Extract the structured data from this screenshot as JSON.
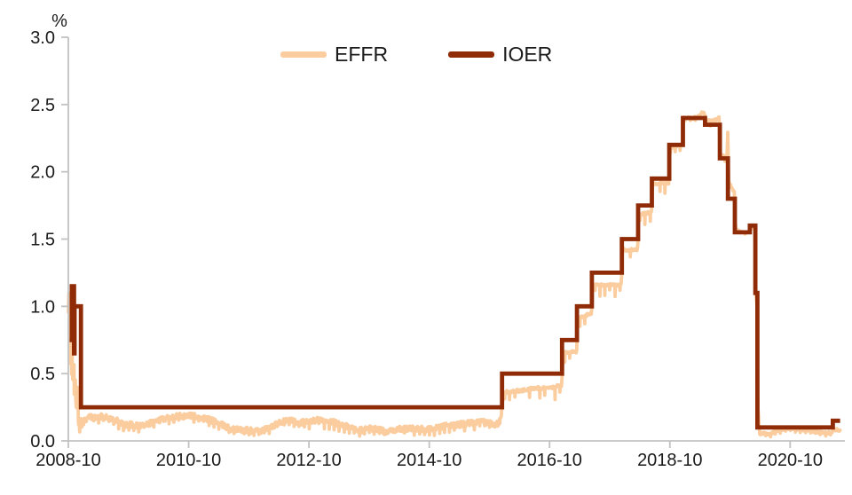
{
  "chart_data": {
    "type": "line",
    "title": "",
    "xlabel": "",
    "ylabel": "%",
    "background": "#FFFFFF",
    "text_color": "#1A1A1A",
    "axis_color": "#C2C2C2",
    "grid": "off",
    "legend_position": "top-center",
    "xlim": [
      2008.75,
      2021.66
    ],
    "ylim": [
      0,
      3.0
    ],
    "x_ticks": [
      {
        "label": "2008-10",
        "t": 2008.75
      },
      {
        "label": "2010-10",
        "t": 2010.75
      },
      {
        "label": "2012-10",
        "t": 2012.75
      },
      {
        "label": "2014-10",
        "t": 2014.75
      },
      {
        "label": "2016-10",
        "t": 2016.75
      },
      {
        "label": "2018-10",
        "t": 2018.75
      },
      {
        "label": "2020-10",
        "t": 2020.75
      }
    ],
    "y_ticks": [
      {
        "label": "0.0",
        "v": 0.0
      },
      {
        "label": "0.5",
        "v": 0.5
      },
      {
        "label": "1.0",
        "v": 1.0
      },
      {
        "label": "1.5",
        "v": 1.5
      },
      {
        "label": "2.0",
        "v": 2.0
      },
      {
        "label": "2.5",
        "v": 2.5
      },
      {
        "label": "3.0",
        "v": 3.0
      }
    ],
    "series": [
      {
        "name": "EFFR",
        "color": "#FACC9E",
        "line_width": 3.8,
        "style": "daily-noisy-line",
        "end": 2021.58,
        "anchors": [
          [
            2008.75,
            0.95
          ],
          [
            2008.753,
            1.45
          ],
          [
            2008.758,
            1.05
          ],
          [
            2008.763,
            1.28
          ],
          [
            2008.77,
            0.75
          ],
          [
            2008.778,
            1.05
          ],
          [
            2008.786,
            0.55
          ],
          [
            2008.795,
            0.9
          ],
          [
            2008.805,
            0.45
          ],
          [
            2008.815,
            0.72
          ],
          [
            2008.826,
            0.38
          ],
          [
            2008.838,
            0.62
          ],
          [
            2008.85,
            0.3
          ],
          [
            2008.865,
            0.5
          ],
          [
            2008.88,
            0.25
          ],
          [
            2008.9,
            0.4
          ],
          [
            2008.92,
            0.15
          ],
          [
            2008.945,
            0.1
          ],
          [
            2008.97,
            0.14
          ],
          [
            2009.0,
            0.15
          ],
          [
            2009.1,
            0.18
          ],
          [
            2009.2,
            0.17
          ],
          [
            2009.3,
            0.18
          ],
          [
            2009.4,
            0.17
          ],
          [
            2009.5,
            0.16
          ],
          [
            2009.6,
            0.14
          ],
          [
            2009.7,
            0.12
          ],
          [
            2009.8,
            0.12
          ],
          [
            2009.9,
            0.11
          ],
          [
            2010.0,
            0.12
          ],
          [
            2010.15,
            0.14
          ],
          [
            2010.3,
            0.16
          ],
          [
            2010.45,
            0.18
          ],
          [
            2010.6,
            0.19
          ],
          [
            2010.75,
            0.19
          ],
          [
            2010.9,
            0.18
          ],
          [
            2011.0,
            0.17
          ],
          [
            2011.15,
            0.15
          ],
          [
            2011.3,
            0.12
          ],
          [
            2011.45,
            0.09
          ],
          [
            2011.6,
            0.08
          ],
          [
            2011.75,
            0.08
          ],
          [
            2011.9,
            0.07
          ],
          [
            2012.0,
            0.08
          ],
          [
            2012.15,
            0.11
          ],
          [
            2012.3,
            0.14
          ],
          [
            2012.45,
            0.15
          ],
          [
            2012.6,
            0.14
          ],
          [
            2012.75,
            0.14
          ],
          [
            2012.9,
            0.16
          ],
          [
            2013.0,
            0.14
          ],
          [
            2013.15,
            0.14
          ],
          [
            2013.3,
            0.12
          ],
          [
            2013.45,
            0.1
          ],
          [
            2013.6,
            0.08
          ],
          [
            2013.75,
            0.09
          ],
          [
            2013.9,
            0.09
          ],
          [
            2014.0,
            0.07
          ],
          [
            2014.15,
            0.08
          ],
          [
            2014.3,
            0.09
          ],
          [
            2014.45,
            0.09
          ],
          [
            2014.6,
            0.09
          ],
          [
            2014.75,
            0.09
          ],
          [
            2014.9,
            0.1
          ],
          [
            2015.0,
            0.11
          ],
          [
            2015.2,
            0.12
          ],
          [
            2015.4,
            0.13
          ],
          [
            2015.6,
            0.14
          ],
          [
            2015.8,
            0.13
          ],
          [
            2015.9,
            0.13
          ],
          [
            2015.95,
            0.2
          ],
          [
            2015.965,
            0.36
          ],
          [
            2016.2,
            0.37
          ],
          [
            2016.5,
            0.39
          ],
          [
            2016.8,
            0.4
          ],
          [
            2016.95,
            0.41
          ],
          [
            2016.965,
            0.55
          ],
          [
            2017.0,
            0.66
          ],
          [
            2017.2,
            0.66
          ],
          [
            2017.215,
            0.91
          ],
          [
            2017.45,
            0.95
          ],
          [
            2017.465,
            1.16
          ],
          [
            2017.7,
            1.16
          ],
          [
            2017.945,
            1.16
          ],
          [
            2017.96,
            1.42
          ],
          [
            2018.215,
            1.42
          ],
          [
            2018.23,
            1.68
          ],
          [
            2018.445,
            1.7
          ],
          [
            2018.46,
            1.91
          ],
          [
            2018.735,
            1.92
          ],
          [
            2018.75,
            2.18
          ],
          [
            2018.96,
            2.2
          ],
          [
            2018.975,
            2.4
          ],
          [
            2019.0,
            2.4
          ],
          [
            2019.15,
            2.4
          ],
          [
            2019.25,
            2.42
          ],
          [
            2019.295,
            2.45
          ],
          [
            2019.33,
            2.43
          ],
          [
            2019.345,
            2.38
          ],
          [
            2019.45,
            2.38
          ],
          [
            2019.57,
            2.4
          ],
          [
            2019.585,
            2.13
          ],
          [
            2019.7,
            2.1
          ],
          [
            2019.712,
            2.3
          ],
          [
            2019.726,
            1.93
          ],
          [
            2019.82,
            1.85
          ],
          [
            2019.84,
            1.58
          ],
          [
            2019.95,
            1.55
          ],
          [
            2020.06,
            1.55
          ],
          [
            2020.08,
            1.58
          ],
          [
            2020.165,
            1.59
          ],
          [
            2020.18,
            1.1
          ],
          [
            2020.2,
            1.0
          ],
          [
            2020.215,
            0.25
          ],
          [
            2020.24,
            0.06
          ],
          [
            2020.4,
            0.05
          ],
          [
            2020.55,
            0.08
          ],
          [
            2020.7,
            0.09
          ],
          [
            2020.85,
            0.09
          ],
          [
            2021.0,
            0.08
          ],
          [
            2021.15,
            0.07
          ],
          [
            2021.3,
            0.06
          ],
          [
            2021.45,
            0.06
          ],
          [
            2021.47,
            0.09
          ],
          [
            2021.58,
            0.08
          ]
        ],
        "noise": {
          "seed": 42,
          "sample_step_years": 0.009,
          "monthly_dip_probability": 0.85,
          "eras": [
            {
              "from": 2008.75,
              "to": 2009.0,
              "amp": 0.05,
              "dip": 0.05
            },
            {
              "from": 2009.0,
              "to": 2015.95,
              "amp": 0.022,
              "dip": 0.055
            },
            {
              "from": 2015.95,
              "to": 2016.95,
              "amp": 0.012,
              "dip": 0.1
            },
            {
              "from": 2016.95,
              "to": 2019.0,
              "amp": 0.01,
              "dip": 0.09
            },
            {
              "from": 2019.0,
              "to": 2019.83,
              "amp": 0.01,
              "dip": 0.04
            },
            {
              "from": 2019.83,
              "to": 2020.17,
              "amp": 0.006,
              "dip": 0.02
            },
            {
              "from": 2020.17,
              "to": 2021.66,
              "amp": 0.01,
              "dip": 0.025
            }
          ]
        }
      },
      {
        "name": "IOER",
        "color": "#8F2C07",
        "line_width": 4.8,
        "style": "step",
        "end": 2021.58,
        "steps": [
          [
            2008.77,
            0.75
          ],
          [
            2008.808,
            1.15
          ],
          [
            2008.845,
            0.65
          ],
          [
            2008.854,
            1.0
          ],
          [
            2008.96,
            0.25
          ],
          [
            2015.96,
            0.5
          ],
          [
            2016.958,
            0.75
          ],
          [
            2017.206,
            1.0
          ],
          [
            2017.454,
            1.25
          ],
          [
            2017.952,
            1.5
          ],
          [
            2018.222,
            1.75
          ],
          [
            2018.451,
            1.95
          ],
          [
            2018.74,
            2.2
          ],
          [
            2018.968,
            2.4
          ],
          [
            2019.334,
            2.35
          ],
          [
            2019.581,
            2.1
          ],
          [
            2019.716,
            1.8
          ],
          [
            2019.831,
            1.55
          ],
          [
            2020.08,
            1.6
          ],
          [
            2020.172,
            1.1
          ],
          [
            2020.205,
            0.1
          ],
          [
            2021.46,
            0.15
          ]
        ]
      }
    ]
  }
}
